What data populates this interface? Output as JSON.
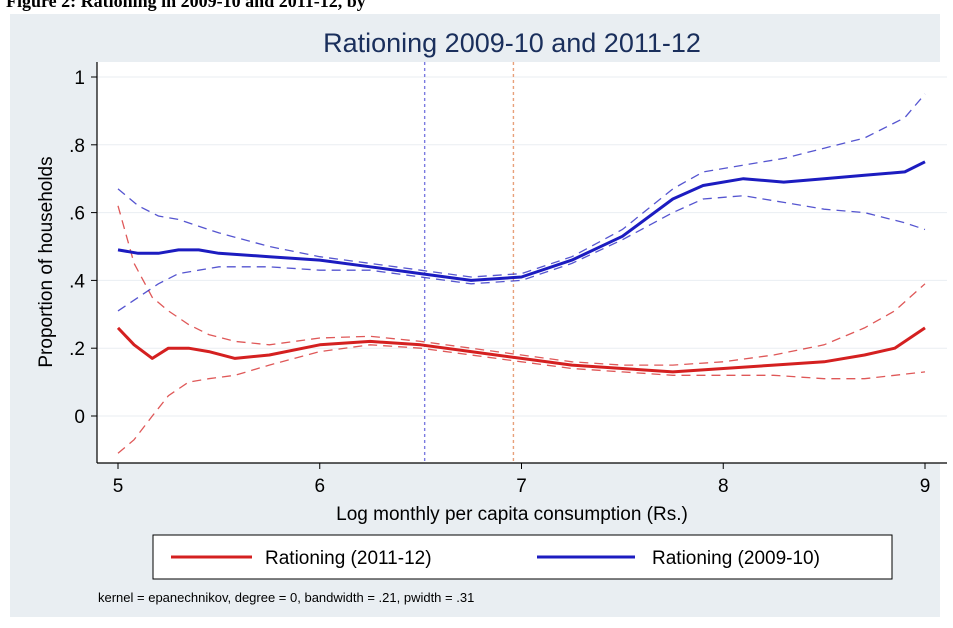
{
  "figure_caption": "Figure 2: Rationing in 2009-10 and 2011-12, by",
  "chart_data": {
    "type": "line",
    "title": "Rationing 2009-10 and 2011-12",
    "xlabel": "Log monthly per capita consumption (Rs.)",
    "ylabel": "Proportion of households",
    "xlim": [
      5,
      9
    ],
    "ylim": [
      -0.15,
      1.03
    ],
    "xticks": [
      5,
      6,
      7,
      8,
      9
    ],
    "xtick_labels": [
      "5",
      "6",
      "7",
      "8",
      "9"
    ],
    "yticks": [
      0,
      0.2,
      0.4,
      0.6,
      0.8,
      1
    ],
    "ytick_labels": [
      "0",
      ".2",
      ".4",
      ".6",
      ".8",
      "1"
    ],
    "grid": true,
    "vlines": [
      {
        "x": 6.52,
        "color": "#7a7ae0"
      },
      {
        "x": 6.96,
        "color": "#e8a07a"
      }
    ],
    "series": [
      {
        "name": "Rationing (2011-12)",
        "color": "#d42020",
        "x": [
          5.0,
          5.08,
          5.17,
          5.25,
          5.35,
          5.45,
          5.58,
          5.75,
          6.0,
          6.25,
          6.5,
          6.75,
          7.0,
          7.25,
          7.5,
          7.75,
          8.0,
          8.25,
          8.5,
          8.7,
          8.85,
          9.0
        ],
        "y": [
          0.26,
          0.21,
          0.17,
          0.2,
          0.2,
          0.19,
          0.17,
          0.18,
          0.21,
          0.22,
          0.21,
          0.19,
          0.17,
          0.15,
          0.14,
          0.13,
          0.14,
          0.15,
          0.16,
          0.18,
          0.2,
          0.26
        ],
        "lower": [
          -0.11,
          -0.07,
          0.0,
          0.06,
          0.1,
          0.11,
          0.12,
          0.15,
          0.19,
          0.21,
          0.2,
          0.18,
          0.16,
          0.14,
          0.13,
          0.12,
          0.12,
          0.12,
          0.11,
          0.11,
          0.12,
          0.13
        ],
        "upper": [
          0.62,
          0.45,
          0.35,
          0.31,
          0.27,
          0.24,
          0.22,
          0.21,
          0.23,
          0.235,
          0.22,
          0.2,
          0.18,
          0.16,
          0.15,
          0.15,
          0.16,
          0.18,
          0.21,
          0.26,
          0.31,
          0.39
        ]
      },
      {
        "name": "Rationing (2009-10)",
        "color": "#1c1cc0",
        "x": [
          5.0,
          5.1,
          5.2,
          5.3,
          5.4,
          5.5,
          5.75,
          6.0,
          6.25,
          6.5,
          6.75,
          7.0,
          7.25,
          7.5,
          7.75,
          7.9,
          8.1,
          8.3,
          8.5,
          8.7,
          8.9,
          9.0
        ],
        "y": [
          0.49,
          0.48,
          0.48,
          0.49,
          0.49,
          0.48,
          0.47,
          0.46,
          0.44,
          0.42,
          0.4,
          0.41,
          0.46,
          0.53,
          0.64,
          0.68,
          0.7,
          0.69,
          0.7,
          0.71,
          0.72,
          0.75
        ],
        "lower": [
          0.31,
          0.35,
          0.39,
          0.42,
          0.43,
          0.44,
          0.44,
          0.43,
          0.43,
          0.41,
          0.39,
          0.4,
          0.45,
          0.52,
          0.6,
          0.64,
          0.65,
          0.63,
          0.61,
          0.6,
          0.57,
          0.55
        ],
        "upper": [
          0.67,
          0.62,
          0.59,
          0.58,
          0.56,
          0.54,
          0.5,
          0.47,
          0.45,
          0.43,
          0.41,
          0.42,
          0.47,
          0.55,
          0.67,
          0.72,
          0.74,
          0.76,
          0.79,
          0.82,
          0.88,
          0.95
        ]
      }
    ],
    "legend_position": "bottom",
    "note": "kernel = epanechnikov, degree = 0, bandwidth = .21, pwidth = .31"
  }
}
